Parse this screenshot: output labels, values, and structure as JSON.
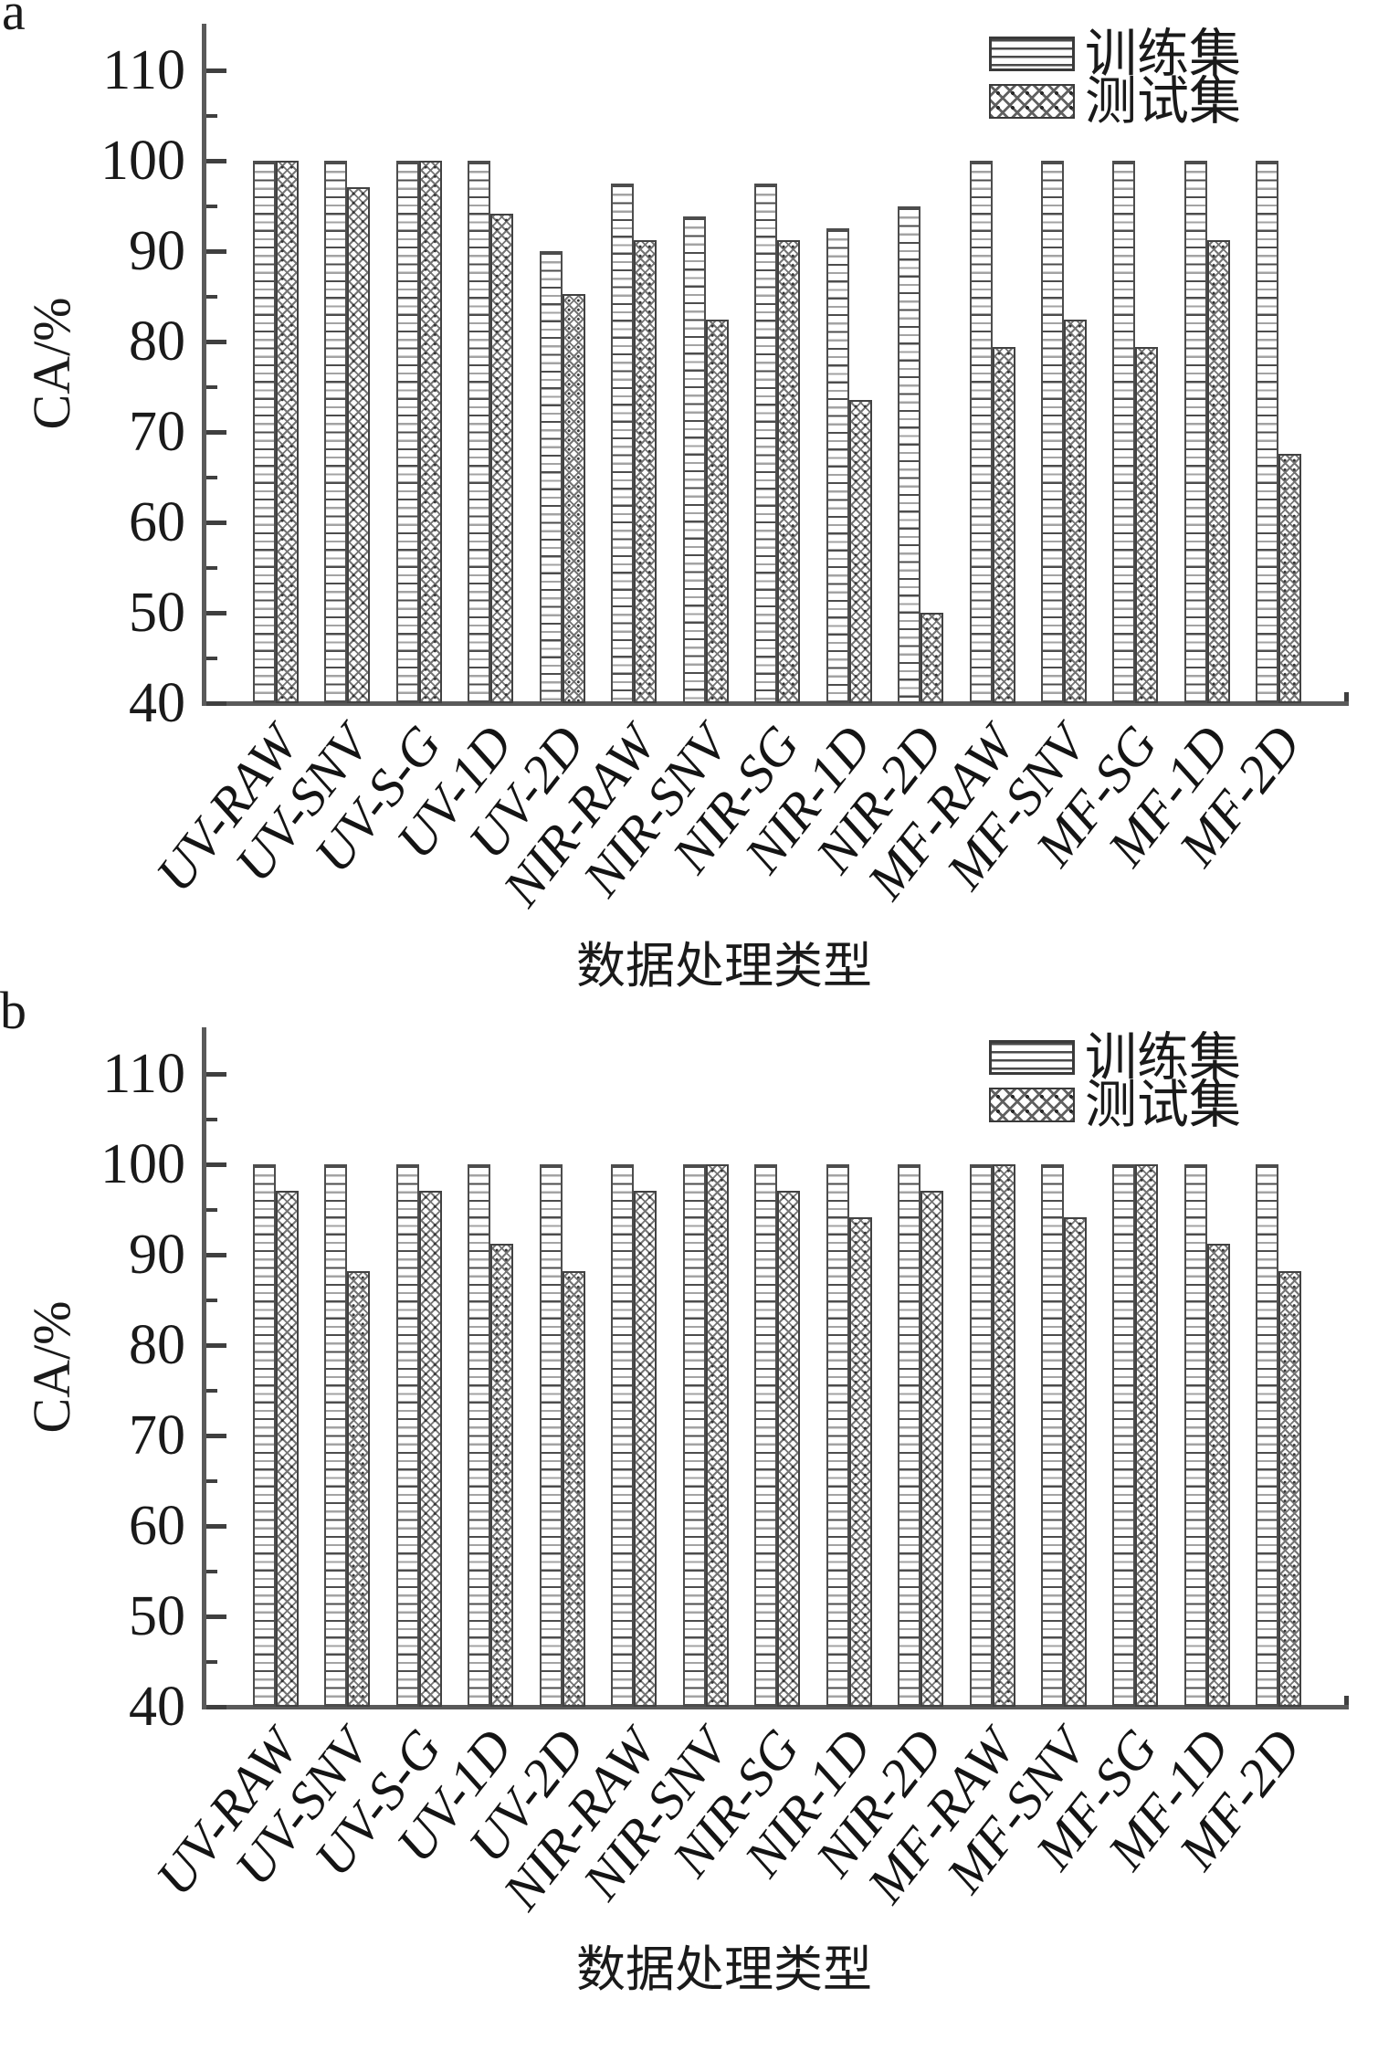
{
  "style": {
    "axis_color": "#5a5a5a",
    "text_color": "#1a1a1a",
    "bar_fill": "#ffffff",
    "pattern_color": "#555555"
  },
  "panel_letters": [
    "a",
    "b"
  ],
  "chart_data": [
    {
      "panel": "a",
      "type": "bar",
      "xlabel": "数据处理类型",
      "ylabel": "CA/%",
      "ylim": [
        40,
        115
      ],
      "yticks": [
        40,
        50,
        60,
        70,
        80,
        90,
        100,
        110
      ],
      "grid": false,
      "legend_position": "top-right",
      "categories": [
        "UV-RAW",
        "UV-SNV",
        "UV-S-G",
        "UV-1D",
        "UV-2D",
        "NIR-RAW",
        "NIR-SNV",
        "NIR-SG",
        "NIR-1D",
        "NIR-2D",
        "MF-RAW",
        "MF-SNV",
        "MF-SG",
        "MF-1D",
        "MF-2D"
      ],
      "series": [
        {
          "name": "训练集",
          "pattern": "horizontal-stripes",
          "values": [
            100,
            100,
            100,
            100,
            90,
            97.5,
            93.8,
            97.5,
            92.5,
            95,
            100,
            100,
            100,
            100,
            100
          ]
        },
        {
          "name": "测试集",
          "pattern": "crosshatch",
          "values": [
            100,
            97.1,
            100,
            94.1,
            85.3,
            91.2,
            82.4,
            91.2,
            73.5,
            50,
            79.4,
            82.4,
            79.4,
            91.2,
            67.6
          ]
        }
      ]
    },
    {
      "panel": "b",
      "type": "bar",
      "xlabel": "数据处理类型",
      "ylabel": "CA/%",
      "ylim": [
        40,
        115
      ],
      "yticks": [
        40,
        50,
        60,
        70,
        80,
        90,
        100,
        110
      ],
      "grid": false,
      "legend_position": "top-right",
      "categories": [
        "UV-RAW",
        "UV-SNV",
        "UV-S-G",
        "UV-1D",
        "UV-2D",
        "NIR-RAW",
        "NIR-SNV",
        "NIR-SG",
        "NIR-1D",
        "NIR-2D",
        "MF-RAW",
        "MF-SNV",
        "MF-SG",
        "MF-1D",
        "MF-2D"
      ],
      "series": [
        {
          "name": "训练集",
          "pattern": "horizontal-stripes",
          "values": [
            100,
            100,
            100,
            100,
            100,
            100,
            100,
            100,
            100,
            100,
            100,
            100,
            100,
            100,
            100
          ]
        },
        {
          "name": "测试集",
          "pattern": "crosshatch",
          "values": [
            97.1,
            88.2,
            97.1,
            91.2,
            88.2,
            97.1,
            100,
            97.1,
            94.1,
            97.1,
            100,
            94.1,
            100,
            91.2,
            88.2
          ]
        }
      ]
    }
  ]
}
